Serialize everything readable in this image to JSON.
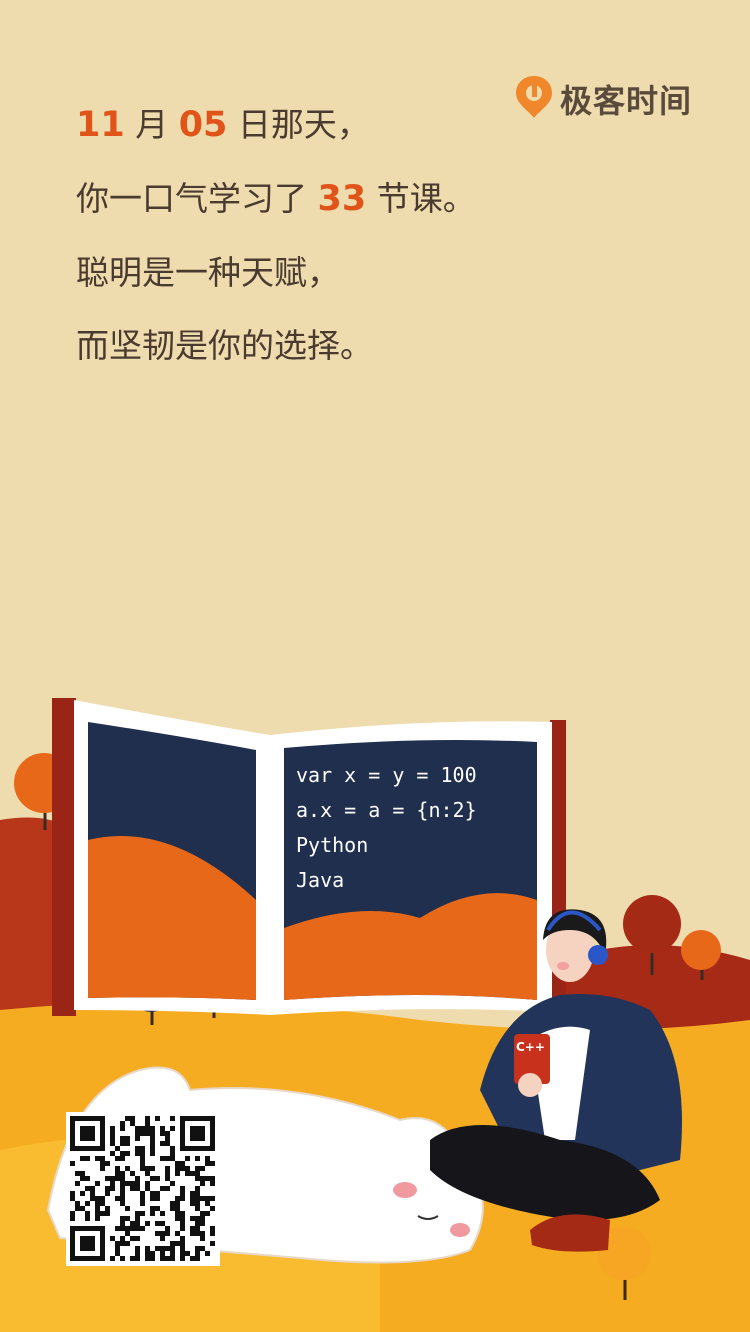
{
  "brand": {
    "logo_text": "极客时间",
    "accent": "#e0541a"
  },
  "poem": {
    "line1": {
      "month_num": "11",
      "month_unit": " 月 ",
      "day_num": "05",
      "day_tail": " 日那天，"
    },
    "line2": {
      "prefix": "你一口气学习了 ",
      "count": "33",
      "suffix": " 节课。"
    },
    "line3": "聪明是一种天赋，",
    "line4": "而坚韧是你的选择。"
  },
  "board": {
    "code_line1": "var x = y = 100",
    "code_line2": "a.x = a = {n:2}",
    "code_line3": "Python",
    "code_line4": "Java"
  },
  "book_label": "C++",
  "qr_icon": "qr-code"
}
